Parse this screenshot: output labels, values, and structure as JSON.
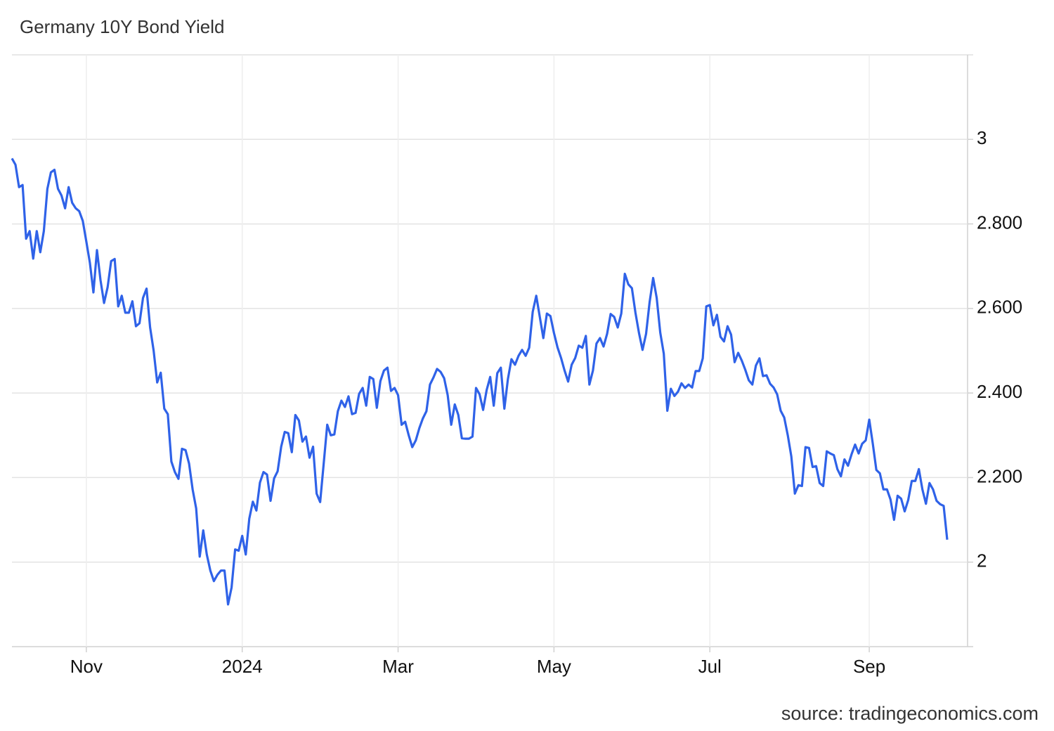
{
  "chart_data": {
    "type": "line",
    "title": "Germany 10Y Bond Yield",
    "source": "source: tradingeconomics.com",
    "categories": [
      null,
      null,
      null,
      null,
      null,
      null,
      null,
      null,
      null,
      null,
      null,
      null,
      null,
      null,
      null,
      null,
      null,
      null,
      null,
      null,
      null,
      "Nov",
      null,
      null,
      null,
      null,
      null,
      null,
      null,
      null,
      null,
      null,
      null,
      null,
      null,
      null,
      null,
      null,
      null,
      null,
      null,
      null,
      null,
      null,
      null,
      null,
      null,
      null,
      null,
      null,
      null,
      null,
      null,
      null,
      null,
      null,
      null,
      null,
      null,
      null,
      null,
      null,
      null,
      null,
      null,
      "2024",
      null,
      null,
      null,
      null,
      null,
      null,
      null,
      null,
      null,
      null,
      null,
      null,
      null,
      null,
      null,
      null,
      null,
      null,
      null,
      null,
      null,
      null,
      null,
      null,
      null,
      null,
      null,
      null,
      null,
      null,
      null,
      null,
      null,
      null,
      null,
      null,
      null,
      null,
      null,
      null,
      null,
      null,
      null,
      "Mar",
      null,
      null,
      null,
      null,
      null,
      null,
      null,
      null,
      null,
      null,
      null,
      null,
      null,
      null,
      null,
      null,
      null,
      null,
      null,
      null,
      null,
      null,
      null,
      null,
      null,
      null,
      null,
      null,
      null,
      null,
      null,
      null,
      null,
      null,
      null,
      null,
      null,
      null,
      null,
      null,
      null,
      null,
      null,
      "May",
      null,
      null,
      null,
      null,
      null,
      null,
      null,
      null,
      null,
      null,
      null,
      null,
      null,
      null,
      null,
      null,
      null,
      null,
      null,
      null,
      null,
      null,
      null,
      null,
      null,
      null,
      null,
      null,
      null,
      null,
      null,
      null,
      null,
      null,
      null,
      null,
      null,
      null,
      null,
      null,
      null,
      null,
      null,
      "Jul",
      null,
      null,
      null,
      null,
      null,
      null,
      null,
      null,
      null,
      null,
      null,
      null,
      null,
      null,
      null,
      null,
      null,
      null,
      null,
      null,
      null,
      null,
      null,
      null,
      null,
      null,
      null,
      null,
      null,
      null,
      null,
      null,
      null,
      null,
      null,
      null,
      null,
      null,
      null,
      null,
      null,
      null,
      null,
      null,
      "Sep",
      null,
      null,
      null,
      null,
      null,
      null,
      null,
      null,
      null,
      null,
      null,
      null,
      null,
      null,
      null,
      null,
      null,
      null,
      null,
      null,
      null,
      null
    ],
    "series": [
      {
        "color": "#2f62e8",
        "values": [
          2.955,
          2.94,
          2.887,
          2.892,
          2.765,
          2.783,
          2.718,
          2.783,
          2.733,
          2.783,
          2.883,
          2.922,
          2.928,
          2.883,
          2.867,
          2.837,
          2.887,
          2.85,
          2.837,
          2.83,
          2.807,
          2.758,
          2.708,
          2.638,
          2.738,
          2.667,
          2.613,
          2.65,
          2.712,
          2.717,
          2.605,
          2.63,
          2.59,
          2.59,
          2.617,
          2.558,
          2.565,
          2.625,
          2.647,
          2.555,
          2.5,
          2.425,
          2.448,
          2.363,
          2.35,
          2.238,
          2.213,
          2.197,
          2.268,
          2.265,
          2.233,
          2.172,
          2.127,
          2.013,
          2.075,
          2.018,
          1.98,
          1.955,
          1.97,
          1.98,
          1.98,
          1.9,
          1.94,
          2.03,
          2.027,
          2.062,
          2.018,
          2.103,
          2.143,
          2.122,
          2.188,
          2.213,
          2.207,
          2.145,
          2.198,
          2.215,
          2.273,
          2.308,
          2.305,
          2.26,
          2.348,
          2.335,
          2.285,
          2.297,
          2.247,
          2.273,
          2.162,
          2.142,
          2.233,
          2.325,
          2.3,
          2.302,
          2.357,
          2.382,
          2.367,
          2.392,
          2.35,
          2.353,
          2.398,
          2.412,
          2.37,
          2.438,
          2.433,
          2.365,
          2.428,
          2.453,
          2.46,
          2.405,
          2.412,
          2.395,
          2.325,
          2.332,
          2.3,
          2.272,
          2.288,
          2.317,
          2.34,
          2.357,
          2.42,
          2.437,
          2.457,
          2.45,
          2.435,
          2.395,
          2.325,
          2.373,
          2.348,
          2.293,
          2.292,
          2.292,
          2.297,
          2.412,
          2.397,
          2.36,
          2.407,
          2.438,
          2.37,
          2.447,
          2.46,
          2.363,
          2.433,
          2.48,
          2.467,
          2.488,
          2.502,
          2.488,
          2.507,
          2.592,
          2.63,
          2.58,
          2.53,
          2.588,
          2.582,
          2.542,
          2.508,
          2.483,
          2.453,
          2.427,
          2.467,
          2.483,
          2.512,
          2.507,
          2.535,
          2.42,
          2.453,
          2.517,
          2.53,
          2.51,
          2.54,
          2.587,
          2.58,
          2.555,
          2.588,
          2.682,
          2.657,
          2.648,
          2.59,
          2.542,
          2.502,
          2.54,
          2.615,
          2.672,
          2.625,
          2.543,
          2.493,
          2.358,
          2.41,
          2.393,
          2.403,
          2.423,
          2.412,
          2.42,
          2.413,
          2.452,
          2.452,
          2.482,
          2.605,
          2.608,
          2.56,
          2.585,
          2.533,
          2.522,
          2.558,
          2.538,
          2.473,
          2.495,
          2.477,
          2.455,
          2.43,
          2.42,
          2.465,
          2.482,
          2.44,
          2.442,
          2.422,
          2.413,
          2.397,
          2.358,
          2.342,
          2.3,
          2.25,
          2.162,
          2.182,
          2.18,
          2.272,
          2.27,
          2.225,
          2.227,
          2.187,
          2.18,
          2.262,
          2.257,
          2.253,
          2.22,
          2.203,
          2.243,
          2.228,
          2.255,
          2.278,
          2.257,
          2.28,
          2.288,
          2.337,
          2.28,
          2.218,
          2.21,
          2.172,
          2.172,
          2.148,
          2.1,
          2.157,
          2.15,
          2.12,
          2.147,
          2.192,
          2.192,
          2.22,
          2.172,
          2.138,
          2.187,
          2.172,
          2.145,
          2.137,
          2.133,
          2.053
        ]
      }
    ],
    "ylim": [
      1.8,
      3.2
    ],
    "yticks": [
      2,
      {
        "value": 2.2,
        "label": "2.200"
      },
      {
        "value": 2.4,
        "label": "2.400"
      },
      {
        "value": 2.6,
        "label": "2.600"
      },
      {
        "value": 2.8,
        "label": "2.800"
      },
      3
    ],
    "grid": true
  }
}
